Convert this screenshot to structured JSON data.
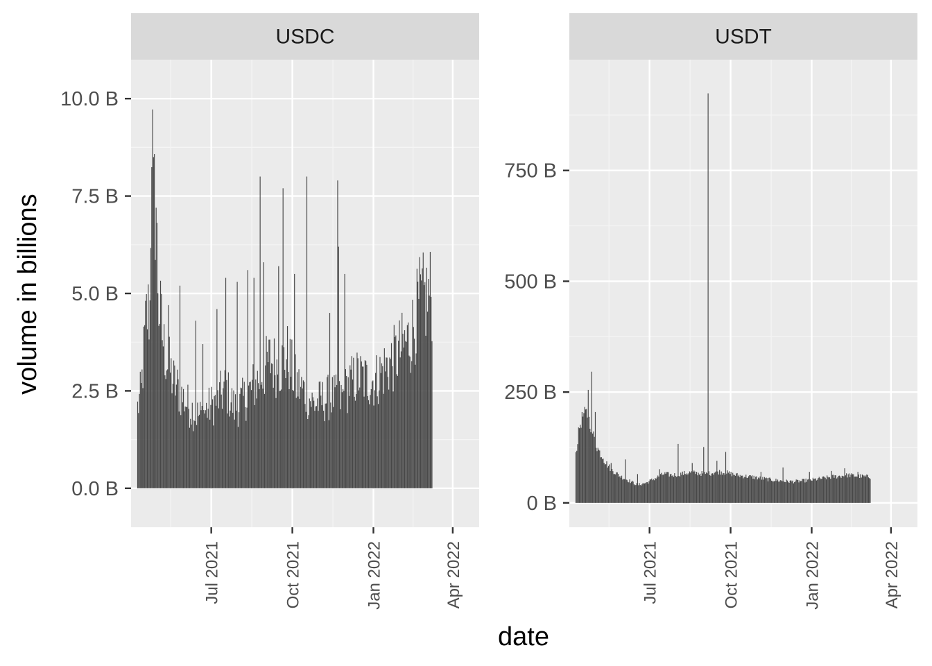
{
  "chart_data": {
    "type": "bar",
    "xlabel": "date",
    "ylabel": "volume in billions",
    "x_range": [
      "2021-04-01",
      "2022-05-01"
    ],
    "x_ticks": [
      "2021-07-01",
      "2021-10-01",
      "2022-01-01",
      "2022-04-01"
    ],
    "x_tick_labels": [
      "Jul 2021",
      "Oct 2021",
      "Jan 2022",
      "Apr 2022"
    ],
    "start_date": "2021-04-08",
    "facets": [
      {
        "name": "USDC",
        "ylim": [
          -1.0,
          11.0
        ],
        "y_ticks": [
          0,
          2.5,
          5,
          7.5,
          10
        ],
        "y_tick_labels": [
          "0.0 B",
          "2.5 B",
          "5.0 B",
          "7.5 B",
          "10.0 B"
        ],
        "bar_color": "#474747",
        "anchor_values": [
          [
            0,
            2.0
          ],
          [
            4,
            2.4
          ],
          [
            10,
            4.3
          ],
          [
            14,
            4.5
          ],
          [
            16,
            9.5
          ],
          [
            18,
            6.9
          ],
          [
            20,
            7.2
          ],
          [
            24,
            4.6
          ],
          [
            30,
            3.5
          ],
          [
            40,
            2.7
          ],
          [
            50,
            2.3
          ],
          [
            60,
            2.0
          ],
          [
            70,
            1.8
          ],
          [
            80,
            2.0
          ],
          [
            90,
            2.2
          ],
          [
            100,
            2.5
          ],
          [
            110,
            2.0
          ],
          [
            120,
            2.2
          ],
          [
            130,
            2.5
          ],
          [
            140,
            2.8
          ],
          [
            150,
            3.2
          ],
          [
            160,
            3.0
          ],
          [
            170,
            3.3
          ],
          [
            180,
            2.6
          ],
          [
            190,
            2.4
          ],
          [
            200,
            2.1
          ],
          [
            210,
            2.2
          ],
          [
            220,
            2.3
          ],
          [
            230,
            2.2
          ],
          [
            240,
            2.6
          ],
          [
            250,
            2.8
          ],
          [
            260,
            2.7
          ],
          [
            270,
            2.7
          ],
          [
            280,
            3.0
          ],
          [
            290,
            3.2
          ],
          [
            300,
            3.5
          ],
          [
            310,
            3.8
          ],
          [
            320,
            4.6
          ],
          [
            330,
            4.8
          ],
          [
            334,
            4.9
          ]
        ],
        "spikes": [
          [
            21,
            7.2
          ],
          [
            35,
            4.7
          ],
          [
            48,
            5.2
          ],
          [
            66,
            4.3
          ],
          [
            74,
            3.7
          ],
          [
            90,
            4.6
          ],
          [
            100,
            5.4
          ],
          [
            113,
            5.3
          ],
          [
            125,
            5.6
          ],
          [
            132,
            5.4
          ],
          [
            139,
            8.0
          ],
          [
            143,
            5.8
          ],
          [
            160,
            5.7
          ],
          [
            165,
            7.7
          ],
          [
            178,
            5.5
          ],
          [
            192,
            8.0
          ],
          [
            218,
            4.5
          ],
          [
            227,
            7.9
          ],
          [
            228,
            6.2
          ],
          [
            235,
            5.5
          ]
        ]
      },
      {
        "name": "USDT",
        "ylim": [
          -55,
          1000
        ],
        "y_ticks": [
          0,
          250,
          500,
          750
        ],
        "y_tick_labels": [
          "0 B",
          "250 B",
          "500 B",
          "750 B"
        ],
        "bar_color": "#474747",
        "anchor_values": [
          [
            0,
            110
          ],
          [
            4,
            170
          ],
          [
            8,
            195
          ],
          [
            12,
            200
          ],
          [
            16,
            180
          ],
          [
            20,
            150
          ],
          [
            24,
            125
          ],
          [
            28,
            110
          ],
          [
            32,
            95
          ],
          [
            40,
            75
          ],
          [
            50,
            60
          ],
          [
            60,
            50
          ],
          [
            70,
            40
          ],
          [
            80,
            45
          ],
          [
            90,
            55
          ],
          [
            100,
            65
          ],
          [
            110,
            62
          ],
          [
            120,
            65
          ],
          [
            130,
            68
          ],
          [
            140,
            66
          ],
          [
            150,
            65
          ],
          [
            160,
            70
          ],
          [
            170,
            68
          ],
          [
            180,
            63
          ],
          [
            190,
            60
          ],
          [
            200,
            58
          ],
          [
            210,
            55
          ],
          [
            220,
            52
          ],
          [
            230,
            50
          ],
          [
            240,
            48
          ],
          [
            250,
            48
          ],
          [
            260,
            50
          ],
          [
            270,
            52
          ],
          [
            280,
            55
          ],
          [
            290,
            58
          ],
          [
            300,
            60
          ],
          [
            310,
            62
          ],
          [
            320,
            60
          ],
          [
            334,
            58
          ]
        ],
        "spikes": [
          [
            14,
            255
          ],
          [
            18,
            296
          ],
          [
            22,
            205
          ],
          [
            31,
            100
          ],
          [
            40,
            90
          ],
          [
            56,
            98
          ],
          [
            70,
            65
          ],
          [
            95,
            76
          ],
          [
            116,
            133
          ],
          [
            132,
            90
          ],
          [
            145,
            126
          ],
          [
            150,
            924
          ],
          [
            160,
            95
          ],
          [
            170,
            115
          ],
          [
            210,
            70
          ],
          [
            235,
            80
          ],
          [
            265,
            70
          ],
          [
            290,
            72
          ],
          [
            305,
            78
          ],
          [
            320,
            70
          ]
        ]
      }
    ]
  }
}
